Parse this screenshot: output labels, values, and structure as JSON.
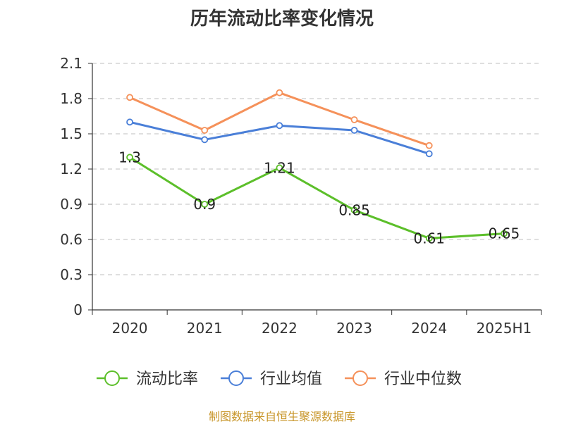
{
  "chart_data": {
    "type": "line",
    "title": "历年流动比率变化情况",
    "categories": [
      "2020",
      "2021",
      "2022",
      "2023",
      "2024",
      "2025H1"
    ],
    "y_ticks": [
      "0",
      "0.3",
      "0.6",
      "0.9",
      "1.2",
      "1.5",
      "1.8",
      "2.1"
    ],
    "ylim": [
      0,
      2.1
    ],
    "grid": true,
    "legend_position": "bottom",
    "series": [
      {
        "name": "流动比率",
        "color": "#5cbf2a",
        "values": [
          1.3,
          0.9,
          1.21,
          0.85,
          0.61,
          0.65
        ],
        "labels": [
          "1.3",
          "0.9",
          "1.21",
          "0.85",
          "0.61",
          "0.65"
        ]
      },
      {
        "name": "行业均值",
        "color": "#4a7fd8",
        "values": [
          1.6,
          1.45,
          1.57,
          1.53,
          1.33,
          null
        ]
      },
      {
        "name": "行业中位数",
        "color": "#f5915a",
        "values": [
          1.81,
          1.53,
          1.85,
          1.62,
          1.4,
          null
        ]
      }
    ]
  },
  "footer": {
    "source": "制图数据来自恒生聚源数据库"
  }
}
